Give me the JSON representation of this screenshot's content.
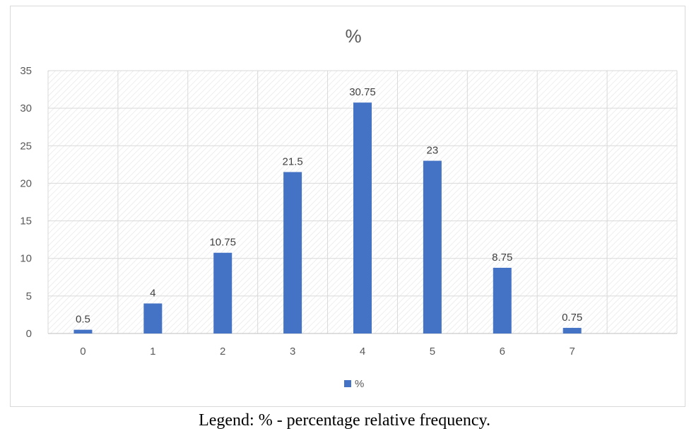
{
  "chart_data": {
    "type": "bar",
    "title": "%",
    "xlabel": "",
    "ylabel": "",
    "categories": [
      "0",
      "1",
      "2",
      "3",
      "4",
      "5",
      "6",
      "7"
    ],
    "series": [
      {
        "name": "%",
        "values": [
          0.5,
          4,
          10.75,
          21.5,
          30.75,
          23,
          8.75,
          0.75
        ]
      }
    ],
    "data_labels": [
      "0.5",
      "4",
      "10.75",
      "21.5",
      "30.75",
      "23",
      "8.75",
      "0.75"
    ],
    "ylim": [
      0,
      35
    ],
    "y_ticks": [
      "0",
      "5",
      "10",
      "15",
      "20",
      "25",
      "30",
      "35"
    ],
    "grid": true,
    "legend_position": "bottom",
    "colors": {
      "bar": "#4472C4",
      "grid": "#d9d9d9",
      "hatch": "#e3e3e3",
      "text": "#595959"
    }
  },
  "caption": "Legend: % - percentage relative frequency."
}
